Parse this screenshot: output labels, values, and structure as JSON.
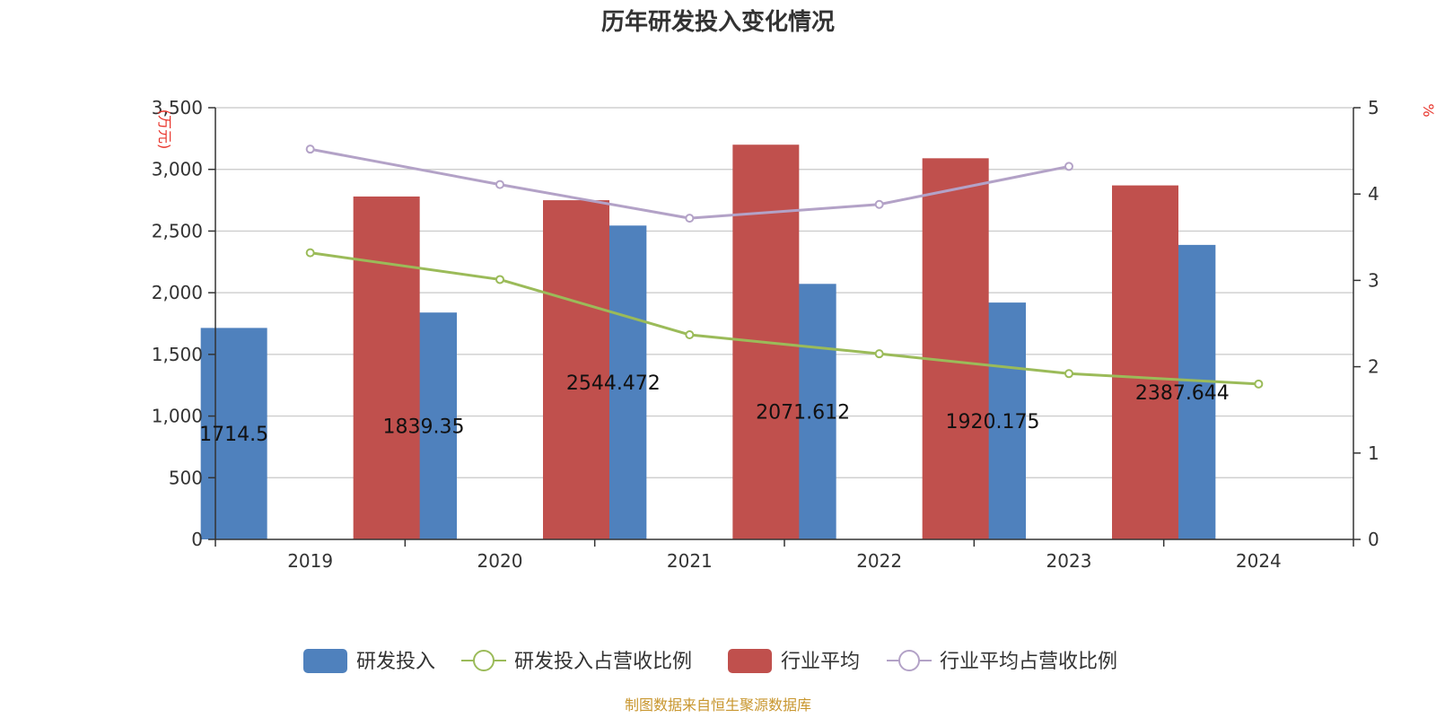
{
  "chart_data": {
    "type": "bar",
    "title": "历年研发投入变化情况",
    "categories": [
      "2019",
      "2020",
      "2021",
      "2022",
      "2023",
      "2024"
    ],
    "left_axis": {
      "unit": "(万元)",
      "ylim": [
        0,
        3500
      ],
      "ticks": [
        0,
        500,
        1000,
        1500,
        2000,
        2500,
        3000,
        3500
      ],
      "tick_labels": [
        "0",
        "500",
        "1,000",
        "1,500",
        "2,000",
        "2,500",
        "3,000",
        "3,500"
      ]
    },
    "right_axis": {
      "unit": "%",
      "ylim": [
        0,
        5
      ],
      "ticks": [
        0,
        1,
        2,
        3,
        4,
        5
      ],
      "tick_labels": [
        "0",
        "1",
        "2",
        "3",
        "4",
        "5"
      ]
    },
    "series": [
      {
        "name": "研发投入",
        "type": "bar",
        "axis": "left",
        "color": "#4f81bd",
        "values": [
          1714.5,
          1839.35,
          2544.472,
          2071.612,
          1920.175,
          2387.644
        ],
        "data_labels": [
          "1714.5",
          "1839.35",
          "2544.472",
          "2071.612",
          "1920.175",
          "2387.644"
        ]
      },
      {
        "name": "研发投入占营收比例",
        "type": "line",
        "axis": "right",
        "color": "#9bbb59",
        "values": [
          3.32,
          3.01,
          2.37,
          2.15,
          1.92,
          1.8
        ]
      },
      {
        "name": "行业平均",
        "type": "bar",
        "axis": "left",
        "color": "#c0504d",
        "values": [
          2780,
          2750,
          3200,
          3090,
          2870,
          null
        ]
      },
      {
        "name": "行业平均占营收比例",
        "type": "line",
        "axis": "right",
        "color": "#b3a2c7",
        "values": [
          4.52,
          4.11,
          3.72,
          3.88,
          4.32,
          null
        ]
      }
    ],
    "grid": true,
    "legend_position": "bottom-center"
  },
  "footer": {
    "source": "制图数据来自恒生聚源数据库"
  }
}
